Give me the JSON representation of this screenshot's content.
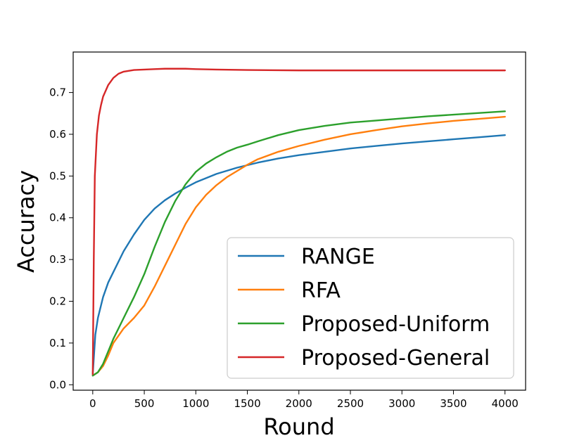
{
  "chart_data": {
    "type": "line",
    "title": "",
    "xlabel": "Round",
    "ylabel": "Accuracy",
    "xlim": [
      -190,
      4200
    ],
    "ylim": [
      -0.013,
      0.797
    ],
    "xticks": [
      0,
      500,
      1000,
      1500,
      2000,
      2500,
      3000,
      3500,
      4000
    ],
    "yticks": [
      0.0,
      0.1,
      0.2,
      0.3,
      0.4,
      0.5,
      0.6,
      0.7
    ],
    "xtick_labels": [
      "0",
      "500",
      "1000",
      "1500",
      "2000",
      "2500",
      "3000",
      "3500",
      "4000"
    ],
    "ytick_labels": [
      "0.0",
      "0.1",
      "0.2",
      "0.3",
      "0.4",
      "0.5",
      "0.6",
      "0.7"
    ],
    "grid": false,
    "legend_position": "lower-right",
    "series": [
      {
        "name": "RANGE",
        "color": "#1f77b4",
        "x": [
          0,
          25,
          50,
          100,
          150,
          200,
          300,
          400,
          500,
          600,
          700,
          800,
          900,
          1000,
          1200,
          1400,
          1600,
          1800,
          2000,
          2250,
          2500,
          2750,
          3000,
          3250,
          3500,
          3750,
          4000
        ],
        "y": [
          0.025,
          0.12,
          0.16,
          0.21,
          0.245,
          0.27,
          0.32,
          0.36,
          0.395,
          0.422,
          0.442,
          0.458,
          0.472,
          0.485,
          0.505,
          0.52,
          0.532,
          0.542,
          0.55,
          0.558,
          0.566,
          0.572,
          0.578,
          0.583,
          0.588,
          0.593,
          0.598
        ]
      },
      {
        "name": "RFA",
        "color": "#ff7f0e",
        "x": [
          0,
          50,
          100,
          150,
          200,
          300,
          400,
          500,
          600,
          700,
          800,
          900,
          1000,
          1100,
          1200,
          1300,
          1400,
          1500,
          1600,
          1800,
          2000,
          2250,
          2500,
          2750,
          3000,
          3250,
          3500,
          3750,
          4000
        ],
        "y": [
          0.022,
          0.03,
          0.045,
          0.07,
          0.1,
          0.135,
          0.16,
          0.19,
          0.235,
          0.285,
          0.335,
          0.385,
          0.425,
          0.455,
          0.478,
          0.497,
          0.512,
          0.527,
          0.54,
          0.558,
          0.572,
          0.587,
          0.6,
          0.61,
          0.619,
          0.626,
          0.632,
          0.637,
          0.642
        ]
      },
      {
        "name": "Proposed-Uniform",
        "color": "#2ca02c",
        "x": [
          0,
          50,
          100,
          150,
          200,
          300,
          400,
          500,
          600,
          700,
          800,
          900,
          1000,
          1100,
          1200,
          1300,
          1400,
          1500,
          1600,
          1800,
          2000,
          2250,
          2500,
          2750,
          3000,
          3250,
          3500,
          3750,
          4000
        ],
        "y": [
          0.022,
          0.03,
          0.05,
          0.08,
          0.11,
          0.16,
          0.21,
          0.265,
          0.33,
          0.39,
          0.44,
          0.48,
          0.51,
          0.53,
          0.545,
          0.558,
          0.568,
          0.575,
          0.583,
          0.598,
          0.61,
          0.62,
          0.628,
          0.633,
          0.638,
          0.643,
          0.647,
          0.651,
          0.655
        ]
      },
      {
        "name": "Proposed-General",
        "color": "#d62728",
        "x": [
          0,
          10,
          20,
          40,
          60,
          80,
          100,
          150,
          200,
          250,
          300,
          400,
          500,
          600,
          700,
          800,
          900,
          1000,
          1200,
          1500,
          2000,
          2500,
          3000,
          3500,
          4000
        ],
        "y": [
          0.025,
          0.3,
          0.5,
          0.6,
          0.645,
          0.67,
          0.69,
          0.718,
          0.735,
          0.745,
          0.75,
          0.754,
          0.755,
          0.756,
          0.757,
          0.757,
          0.757,
          0.756,
          0.755,
          0.754,
          0.753,
          0.753,
          0.753,
          0.753,
          0.753
        ]
      }
    ]
  }
}
